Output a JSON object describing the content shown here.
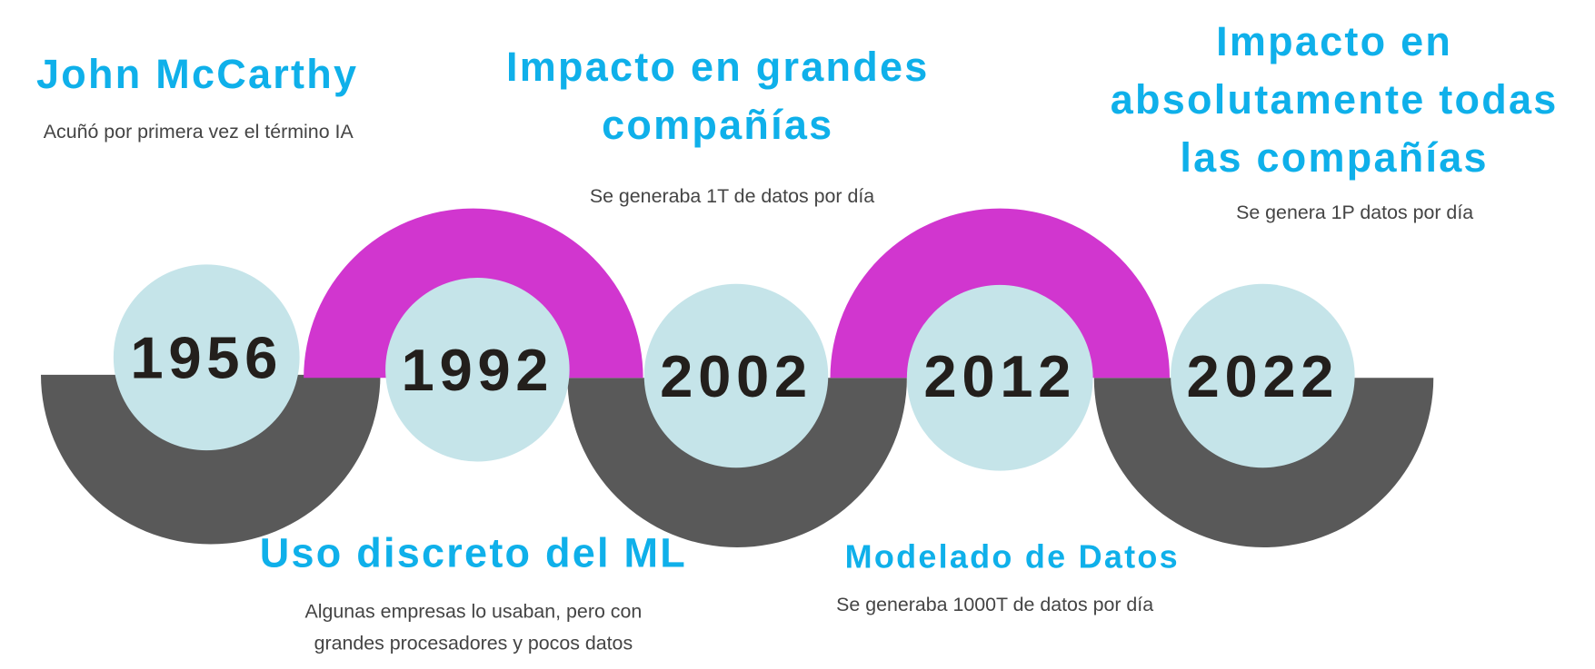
{
  "timeline": {
    "events": [
      {
        "year": "1956",
        "title": "John McCarthy",
        "description": "Acuñó por primera vez el término IA"
      },
      {
        "year": "1992",
        "title": "Uso discreto del ML",
        "description": "Algunas empresas lo usaban, pero  con grandes procesadores y pocos datos"
      },
      {
        "year": "2002",
        "title": "Impacto en grandes compañías",
        "description": "Se generaba  1T de datos por día"
      },
      {
        "year": "2012",
        "title": "Modelado de Datos",
        "description": "Se generaba  1000T de datos por día"
      },
      {
        "year": "2022",
        "title": "Impacto en absolutamente todas las compañías",
        "description": "Se genera  1P datos por día"
      }
    ]
  }
}
